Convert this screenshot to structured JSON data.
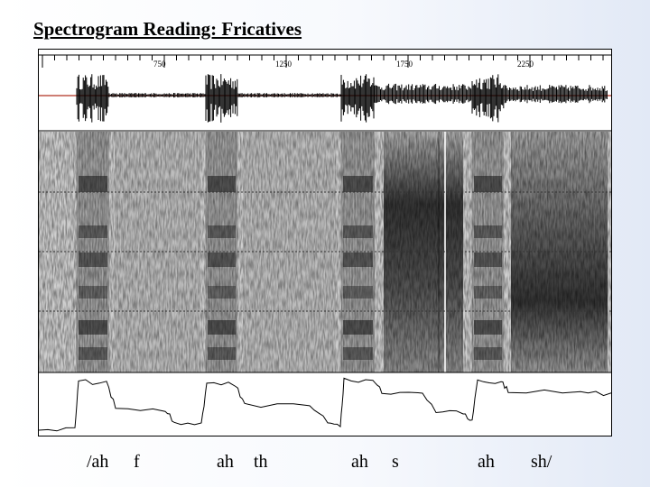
{
  "slide": {
    "title": "Spectrogram Reading: Fricatives"
  },
  "time_axis": {
    "ticks": [
      "750",
      "1250",
      "1750",
      "2250"
    ]
  },
  "segments": [
    {
      "label": "/ah",
      "type": "vowel"
    },
    {
      "label": "f",
      "type": "fricative",
      "strength": "weak"
    },
    {
      "label": "ah",
      "type": "vowel"
    },
    {
      "label": "th",
      "type": "fricative",
      "strength": "weak"
    },
    {
      "label": "ah",
      "type": "vowel"
    },
    {
      "label": "s",
      "type": "fricative",
      "strength": "strong"
    },
    {
      "label": "ah",
      "type": "vowel"
    },
    {
      "label": "sh/",
      "type": "fricative",
      "strength": "strong"
    }
  ],
  "colors": {
    "waveform_baseline": "#b03020",
    "trace": "#000000",
    "grid": "#333333"
  }
}
